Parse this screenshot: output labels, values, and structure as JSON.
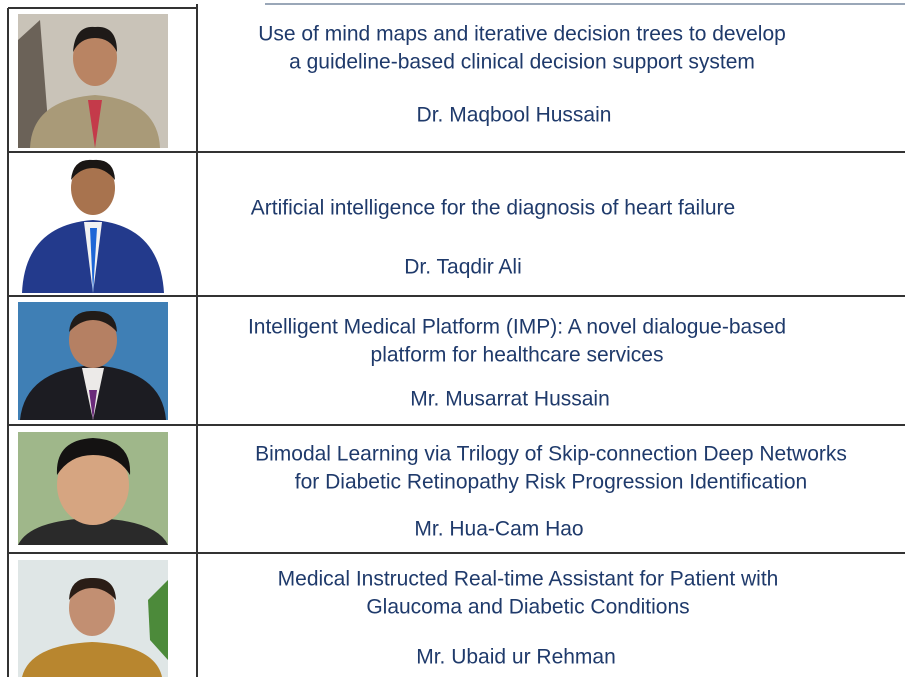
{
  "table": {
    "rows": [
      {
        "title": [
          "Use of mind maps and iterative decision trees to develop",
          "a guideline-based clinical decision support system"
        ],
        "speaker": "Dr. Maqbool Hussain"
      },
      {
        "title": [
          "Artificial intelligence for the diagnosis of heart failure"
        ],
        "speaker": "Dr. Taqdir Ali"
      },
      {
        "title": [
          "Intelligent Medical Platform (IMP): A novel dialogue-based",
          "platform for healthcare services"
        ],
        "speaker": "Mr. Musarrat Hussain"
      },
      {
        "title": [
          "Bimodal Learning via Trilogy of Skip-connection Deep Networks",
          "for Diabetic Retinopathy Risk Progression Identification"
        ],
        "speaker": "Mr. Hua-Cam Hao"
      },
      {
        "title": [
          "Medical Instructed Real-time Assistant for Patient with",
          "Glaucoma and Diabetic Conditions"
        ],
        "speaker": "Mr. Ubaid ur Rehman"
      }
    ]
  }
}
